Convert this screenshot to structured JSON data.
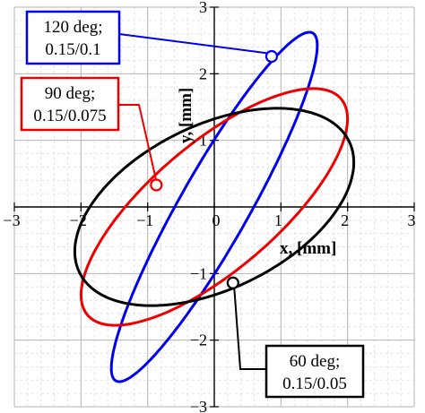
{
  "chart_data": {
    "type": "line",
    "title": "",
    "xlabel": "x, [mm]",
    "ylabel": "y, [mm]",
    "xlim": [
      -3,
      3
    ],
    "ylim": [
      -3,
      3
    ],
    "x_ticks": [
      -3,
      -2,
      -1,
      0,
      1,
      2,
      3
    ],
    "y_ticks": [
      -3,
      -2,
      -1,
      1,
      2,
      3
    ],
    "x_tick_labels": [
      "−3",
      "−2",
      "−1",
      "0",
      "1",
      "2",
      "3"
    ],
    "y_tick_labels": [
      "−3",
      "−2",
      "−1",
      "1",
      "2",
      "3"
    ],
    "grid": true,
    "series": [
      {
        "color": "#0000ee",
        "annotation": [
          "120 deg;",
          "0.15/0.1"
        ],
        "ellipse": {
          "cx": 0.0,
          "cy": 0.0,
          "a": 3.0,
          "b": 0.52,
          "angle_deg": 60.5
        },
        "marker": {
          "x": 0.86,
          "y": 2.26
        }
      },
      {
        "color": "#ee0000",
        "annotation": [
          "90 deg;",
          "0.15/0.075"
        ],
        "ellipse": {
          "cx": 0.0,
          "cy": 0.0,
          "a": 2.5,
          "b": 0.95,
          "angle_deg": 40.5
        },
        "marker": {
          "x": -0.87,
          "y": 0.33
        }
      },
      {
        "color": "#000000",
        "annotation": [
          "60 deg;",
          "0.15/0.05"
        ],
        "ellipse": {
          "cx": 0.0,
          "cy": 0.0,
          "a": 2.25,
          "b": 1.23,
          "angle_deg": 26
        },
        "marker": {
          "x": 0.28,
          "y": -1.14
        }
      }
    ]
  }
}
